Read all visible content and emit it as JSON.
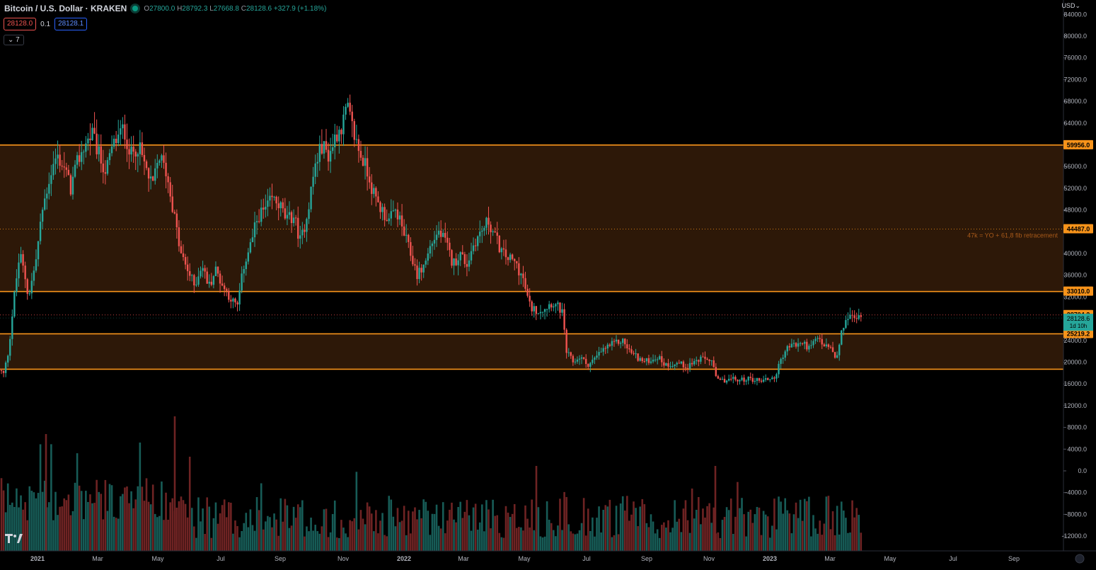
{
  "header": {
    "symbol": "Bitcoin / U.S. Dollar · KRAKEN",
    "ohlc": {
      "o_label": "O",
      "o": "27800.0",
      "h_label": "H",
      "h": "28792.3",
      "l_label": "L",
      "l": "27668.8",
      "c_label": "C",
      "c": "28128.6",
      "change": "+327.9 (+1.18%)"
    },
    "sell_price": "28128.0",
    "spread": "0.1",
    "buy_price": "28128.1",
    "indicator_toggle": "7",
    "currency": "USD"
  },
  "colors": {
    "up": "#26a69a",
    "down": "#ef5350",
    "zone": "#2d1808",
    "line": "#f7931a",
    "vol_up": "#175c57",
    "vol_down": "#6e2323",
    "bg": "#000000",
    "axis_text": "#b2b5be"
  },
  "chart_data": {
    "type": "candlestick",
    "symbol": "BTCUSD",
    "timeframe": "3D (approx.)",
    "y_axis": {
      "side": "right",
      "ticks": [
        84000,
        80000,
        76000,
        72000,
        68000,
        64000,
        56000,
        52000,
        48000,
        40000,
        36000,
        32000,
        24000,
        20000,
        16000,
        12000,
        8000,
        4000,
        0,
        -4000,
        -8000,
        -12000
      ],
      "format": "0.0"
    },
    "x_axis": {
      "labels": [
        "2021",
        "Mar",
        "May",
        "Jul",
        "Sep",
        "Nov",
        "2022",
        "Mar",
        "May",
        "Jul",
        "Sep",
        "Nov",
        "2023",
        "Mar",
        "May",
        "Jul",
        "Sep"
      ]
    },
    "horizontal_levels": [
      {
        "price": 59956.0,
        "label": "59956.0",
        "style": "solid"
      },
      {
        "price": 44487.0,
        "label": "44487.0",
        "style": "dotted",
        "note": "47k = YO + 61,8 fib retracement"
      },
      {
        "price": 33010.0,
        "label": "33010.0",
        "style": "solid"
      },
      {
        "price": 28704.2,
        "label": "28704.2",
        "style": "dotted"
      },
      {
        "price": 25219.2,
        "label": "25219.2",
        "style": "solid"
      },
      {
        "price": 18700.0,
        "style": "solid"
      }
    ],
    "zones": [
      {
        "from": 33010.0,
        "to": 59956.0
      },
      {
        "from": 18700.0,
        "to": 25219.2
      }
    ],
    "last_price": {
      "value": 28128.6,
      "label": "28128.6",
      "countdown": "1d 10h"
    },
    "price_path": [
      [
        0,
        18500
      ],
      [
        5,
        17800
      ],
      [
        12,
        22000
      ],
      [
        20,
        32000
      ],
      [
        28,
        40000
      ],
      [
        35,
        36000
      ],
      [
        40,
        32000
      ],
      [
        50,
        38000
      ],
      [
        60,
        48000
      ],
      [
        70,
        54000
      ],
      [
        80,
        58000
      ],
      [
        90,
        56000
      ],
      [
        100,
        52000
      ],
      [
        110,
        57000
      ],
      [
        120,
        60000
      ],
      [
        130,
        62000
      ],
      [
        140,
        58000
      ],
      [
        150,
        55000
      ],
      [
        160,
        60000
      ],
      [
        175,
        63000
      ],
      [
        185,
        58000
      ],
      [
        195,
        60000
      ],
      [
        205,
        56000
      ],
      [
        215,
        52000
      ],
      [
        225,
        58000
      ],
      [
        235,
        55000
      ],
      [
        245,
        48000
      ],
      [
        255,
        40000
      ],
      [
        265,
        37000
      ],
      [
        275,
        34000
      ],
      [
        285,
        38000
      ],
      [
        295,
        34000
      ],
      [
        305,
        37000
      ],
      [
        315,
        34000
      ],
      [
        325,
        32000
      ],
      [
        335,
        30000
      ],
      [
        345,
        38000
      ],
      [
        355,
        42000
      ],
      [
        365,
        47000
      ],
      [
        375,
        48000
      ],
      [
        385,
        50000
      ],
      [
        395,
        49000
      ],
      [
        405,
        46000
      ],
      [
        415,
        47000
      ],
      [
        425,
        42000
      ],
      [
        435,
        48000
      ],
      [
        445,
        56000
      ],
      [
        455,
        60000
      ],
      [
        465,
        58000
      ],
      [
        475,
        62000
      ],
      [
        485,
        64000
      ],
      [
        490,
        67000
      ],
      [
        500,
        62000
      ],
      [
        510,
        58000
      ],
      [
        520,
        55000
      ],
      [
        530,
        50000
      ],
      [
        540,
        48000
      ],
      [
        550,
        46000
      ],
      [
        560,
        48000
      ],
      [
        570,
        44000
      ],
      [
        580,
        40000
      ],
      [
        590,
        36000
      ],
      [
        600,
        38000
      ],
      [
        610,
        42000
      ],
      [
        620,
        44000
      ],
      [
        630,
        42000
      ],
      [
        640,
        38000
      ],
      [
        650,
        40000
      ],
      [
        660,
        38000
      ],
      [
        670,
        42000
      ],
      [
        680,
        44000
      ],
      [
        690,
        46000
      ],
      [
        700,
        43000
      ],
      [
        710,
        40000
      ],
      [
        720,
        39000
      ],
      [
        730,
        38000
      ],
      [
        740,
        35000
      ],
      [
        745,
        32000
      ],
      [
        750,
        30000
      ],
      [
        760,
        29500
      ],
      [
        770,
        30000
      ],
      [
        780,
        31000
      ],
      [
        790,
        30000
      ],
      [
        795,
        29000
      ],
      [
        800,
        22000
      ],
      [
        810,
        20000
      ],
      [
        820,
        21000
      ],
      [
        830,
        19500
      ],
      [
        840,
        20500
      ],
      [
        850,
        22000
      ],
      [
        860,
        23000
      ],
      [
        870,
        23500
      ],
      [
        880,
        24000
      ],
      [
        890,
        22000
      ],
      [
        900,
        21000
      ],
      [
        910,
        20000
      ],
      [
        920,
        20500
      ],
      [
        930,
        21000
      ],
      [
        940,
        19500
      ],
      [
        950,
        19700
      ],
      [
        960,
        19800
      ],
      [
        970,
        19200
      ],
      [
        980,
        20000
      ],
      [
        990,
        20500
      ],
      [
        1005,
        20500
      ],
      [
        1010,
        18000
      ],
      [
        1015,
        16500
      ],
      [
        1025,
        16700
      ],
      [
        1035,
        16900
      ],
      [
        1045,
        16600
      ],
      [
        1055,
        17000
      ],
      [
        1065,
        16800
      ],
      [
        1075,
        16700
      ],
      [
        1085,
        16900
      ],
      [
        1095,
        17200
      ],
      [
        1100,
        19000
      ],
      [
        1105,
        21000
      ],
      [
        1115,
        23000
      ],
      [
        1125,
        23200
      ],
      [
        1135,
        23500
      ],
      [
        1145,
        22500
      ],
      [
        1155,
        24500
      ],
      [
        1165,
        23000
      ],
      [
        1175,
        22500
      ],
      [
        1182,
        20000
      ],
      [
        1188,
        24500
      ],
      [
        1195,
        28000
      ],
      [
        1205,
        28300
      ],
      [
        1215,
        28100
      ],
      [
        1219,
        28128
      ]
    ]
  }
}
